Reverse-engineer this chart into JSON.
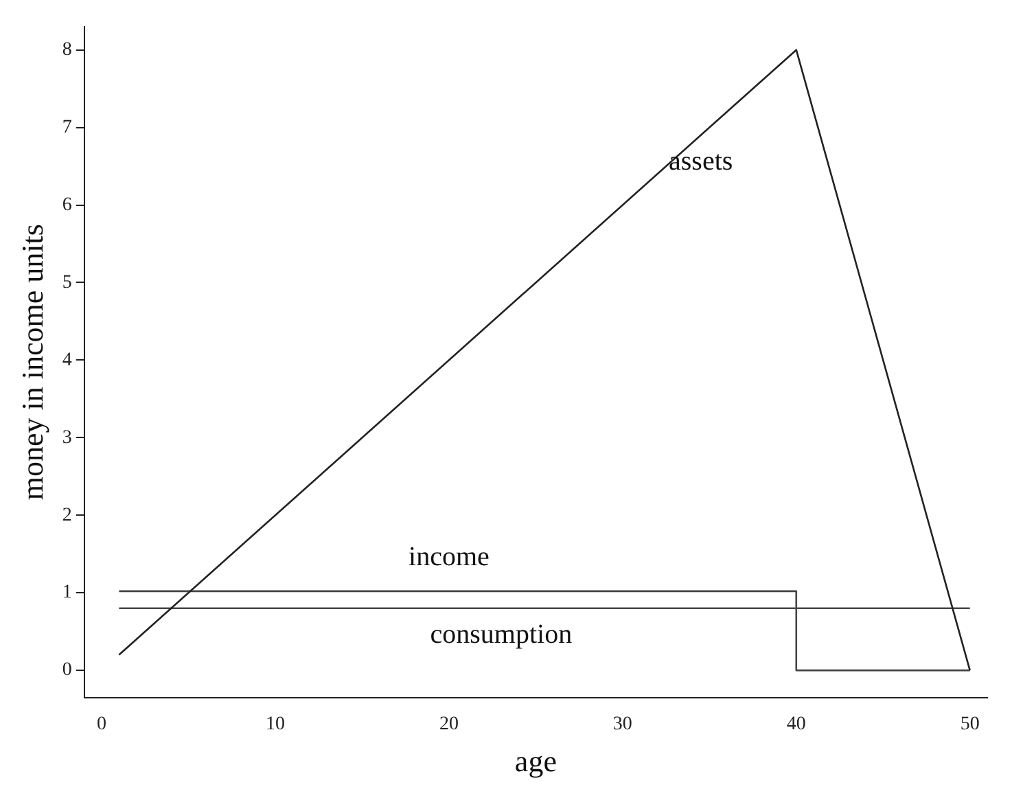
{
  "chart_data": {
    "type": "line",
    "xlabel": "age",
    "ylabel": "money in income units",
    "xlim": [
      -1,
      51
    ],
    "ylim": [
      -0.35,
      8.3
    ],
    "xticks": [
      0,
      10,
      20,
      30,
      40,
      50
    ],
    "yticks": [
      0,
      1,
      2,
      3,
      4,
      5,
      6,
      7,
      8
    ],
    "grid": false,
    "legend": false,
    "marker": "none",
    "line_style": "solid",
    "series": [
      {
        "name": "assets",
        "color": "#222222",
        "x": [
          1,
          40,
          50
        ],
        "values": [
          0.2,
          8,
          0
        ]
      },
      {
        "name": "income",
        "color": "#444444",
        "x": [
          1,
          40,
          40,
          50
        ],
        "values": [
          1.02,
          1.02,
          0,
          0
        ]
      },
      {
        "name": "consumption",
        "color": "#444444",
        "x": [
          1,
          50
        ],
        "values": [
          0.8,
          0.8
        ]
      }
    ]
  }
}
